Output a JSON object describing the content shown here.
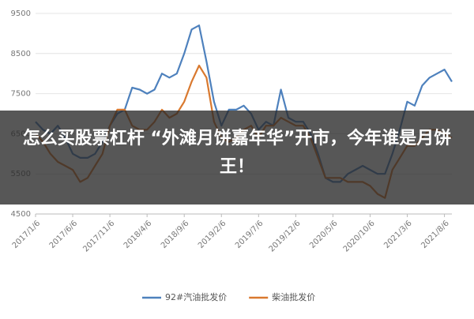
{
  "chart_data": {
    "type": "line",
    "annotation": "怎么买股票杠杆 “外滩月饼嘉年华”开市，今年谁是月饼王！",
    "categories": [
      "2017/1/6",
      null,
      null,
      null,
      null,
      "2017/6/6",
      null,
      null,
      null,
      null,
      "2017/11/6",
      null,
      null,
      null,
      null,
      "2018/4/6",
      null,
      null,
      null,
      null,
      "2018/9/6",
      null,
      null,
      null,
      null,
      "2019/2/6",
      null,
      null,
      null,
      null,
      "2019/7/6",
      null,
      null,
      null,
      null,
      "2019/12/6",
      null,
      null,
      null,
      null,
      "2020/5/6",
      null,
      null,
      null,
      null,
      "2020/10/6",
      null,
      null,
      null,
      null,
      "2021/3/6",
      null,
      null,
      null,
      null,
      "2021/8/6",
      null
    ],
    "series": [
      {
        "name": "92#汽油批发价",
        "color": "#4e81bd",
        "values": [
          6800,
          6600,
          6500,
          6700,
          6400,
          6000,
          5900,
          5900,
          6000,
          6300,
          6700,
          7000,
          7100,
          7650,
          7600,
          7500,
          7600,
          8000,
          7900,
          8000,
          8500,
          9100,
          9200,
          8300,
          7300,
          6700,
          7100,
          7100,
          7200,
          7000,
          6600,
          6800,
          6700,
          7600,
          6900,
          6800,
          6800,
          6500,
          6000,
          5400,
          5300,
          5300,
          5500,
          5600,
          5700,
          5600,
          5500,
          5500,
          6000,
          6600,
          7300,
          7200,
          7700,
          7900,
          8000,
          8100,
          7800
        ]
      },
      {
        "name": "柴油批发价",
        "color": "#d9792f",
        "values": [
          6500,
          6300,
          6000,
          5800,
          5700,
          5600,
          5300,
          5400,
          5700,
          6000,
          6700,
          7100,
          7100,
          6700,
          6600,
          6600,
          6800,
          7100,
          6900,
          7000,
          7300,
          7800,
          8200,
          7900,
          6800,
          6400,
          6300,
          6400,
          6600,
          6700,
          6400,
          6700,
          6700,
          6900,
          6800,
          6700,
          6700,
          6400,
          5900,
          5400,
          5400,
          5400,
          5300,
          5300,
          5300,
          5200,
          5000,
          4900,
          5600,
          5900,
          6200,
          6200,
          6400,
          6600,
          6600,
          6500,
          6400
        ]
      }
    ],
    "ylim": [
      4500,
      9500
    ],
    "yticks": [
      4500,
      5500,
      6500,
      7500,
      8500,
      9500
    ],
    "grid": true,
    "legend": "bottom"
  }
}
